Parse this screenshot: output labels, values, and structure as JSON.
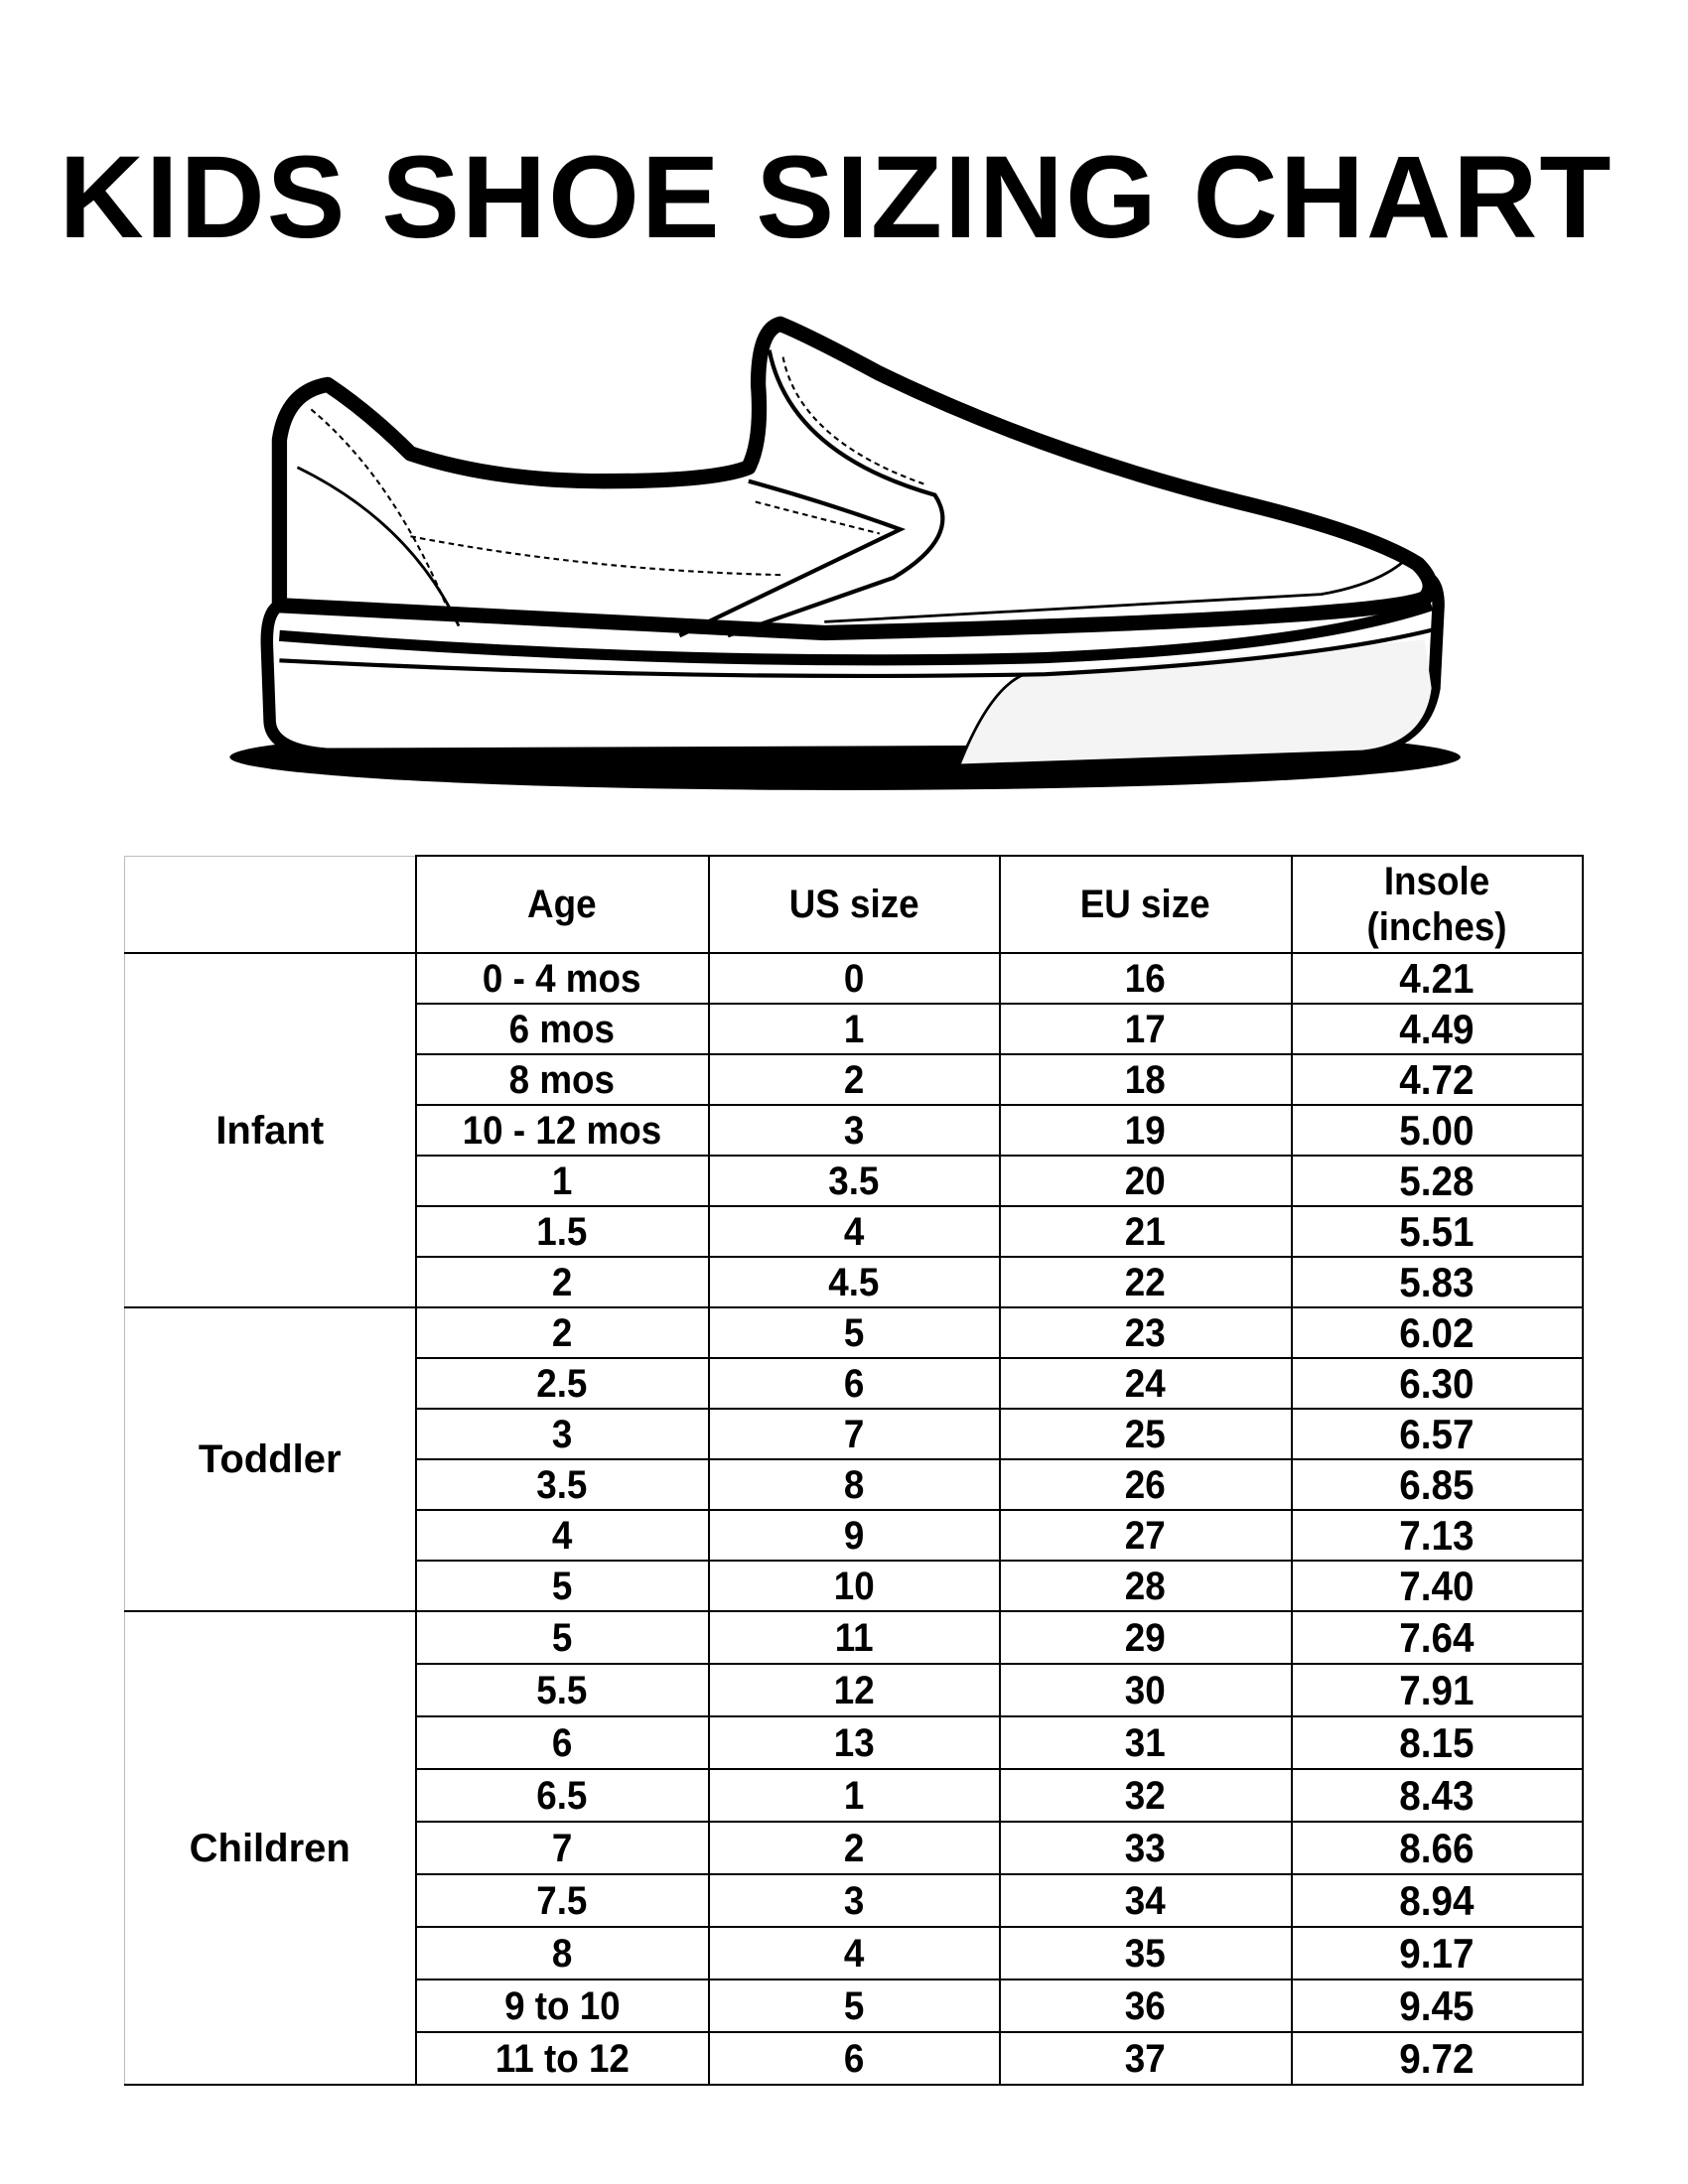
{
  "title": "KIDS SHOE SIZING CHART",
  "headers": [
    "",
    "Age",
    "US size",
    "EU size",
    "Insole (inches)"
  ],
  "groups": [
    {
      "name": "Infant",
      "rows": [
        [
          "0 - 4 mos",
          "0",
          "16",
          "4.21"
        ],
        [
          "6 mos",
          "1",
          "17",
          "4.49"
        ],
        [
          "8 mos",
          "2",
          "18",
          "4.72"
        ],
        [
          "10 - 12 mos",
          "3",
          "19",
          "5.00"
        ],
        [
          "1",
          "3.5",
          "20",
          "5.28"
        ],
        [
          "1.5",
          "4",
          "21",
          "5.51"
        ],
        [
          "2",
          "4.5",
          "22",
          "5.83"
        ]
      ]
    },
    {
      "name": "Toddler",
      "rows": [
        [
          "2",
          "5",
          "23",
          "6.02"
        ],
        [
          "2.5",
          "6",
          "24",
          "6.30"
        ],
        [
          "3",
          "7",
          "25",
          "6.57"
        ],
        [
          "3.5",
          "8",
          "26",
          "6.85"
        ],
        [
          "4",
          "9",
          "27",
          "7.13"
        ],
        [
          "5",
          "10",
          "28",
          "7.40"
        ]
      ]
    },
    {
      "name": "Children",
      "rows": [
        [
          "5",
          "11",
          "29",
          "7.64"
        ],
        [
          "5.5",
          "12",
          "30",
          "7.91"
        ],
        [
          "6",
          "13",
          "31",
          "8.15"
        ],
        [
          "6.5",
          "1",
          "32",
          "8.43"
        ],
        [
          "7",
          "2",
          "33",
          "8.66"
        ],
        [
          "7.5",
          "3",
          "34",
          "8.94"
        ],
        [
          "8",
          "4",
          "35",
          "9.17"
        ],
        [
          "9 to 10",
          "5",
          "36",
          "9.45"
        ],
        [
          "11 to 12",
          "6",
          "37",
          "9.72"
        ]
      ]
    }
  ]
}
